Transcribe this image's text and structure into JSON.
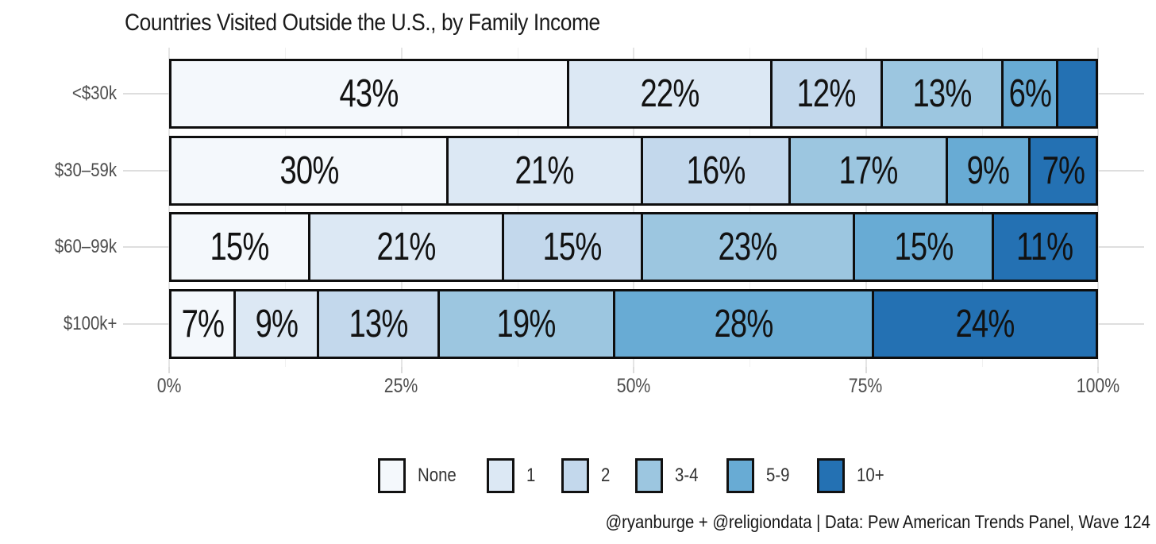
{
  "chart_data": {
    "type": "bar",
    "variant": "horizontal-stacked-100pct",
    "title": "Countries Visited Outside the U.S., by Family Income",
    "categories": [
      "<$30k",
      "$30–59k",
      "$60–99k",
      "$100k+"
    ],
    "legend": [
      "None",
      "1",
      "2",
      "3-4",
      "5-9",
      "10+"
    ],
    "legend_position": "bottom",
    "colors": [
      "#f4f8fc",
      "#dce8f4",
      "#c3d8ec",
      "#9cc6e0",
      "#68abd4",
      "#2471b3"
    ],
    "series": [
      {
        "name": "None",
        "values": [
          43,
          30,
          15,
          7
        ]
      },
      {
        "name": "1",
        "values": [
          22,
          21,
          21,
          9
        ]
      },
      {
        "name": "2",
        "values": [
          12,
          16,
          15,
          13
        ]
      },
      {
        "name": "3-4",
        "values": [
          13,
          17,
          23,
          19
        ]
      },
      {
        "name": "5-9",
        "values": [
          6,
          9,
          15,
          28
        ]
      },
      {
        "name": "10+",
        "values": [
          4,
          7,
          11,
          24
        ]
      }
    ],
    "rows": [
      {
        "category": "<$30k",
        "values": [
          43,
          22,
          12,
          13,
          6,
          4
        ],
        "labels": [
          "43%",
          "22%",
          "12%",
          "13%",
          "6%",
          ""
        ]
      },
      {
        "category": "$30–59k",
        "values": [
          30,
          21,
          16,
          17,
          9,
          7
        ],
        "labels": [
          "30%",
          "21%",
          "16%",
          "17%",
          "9%",
          "7%"
        ]
      },
      {
        "category": "$60–99k",
        "values": [
          15,
          21,
          15,
          23,
          15,
          11
        ],
        "labels": [
          "15%",
          "21%",
          "15%",
          "23%",
          "15%",
          "11%"
        ]
      },
      {
        "category": "$100k+",
        "values": [
          7,
          9,
          13,
          19,
          28,
          24
        ],
        "labels": [
          "7%",
          "9%",
          "13%",
          "19%",
          "28%",
          "24%"
        ]
      }
    ],
    "x_ticks": [
      "0%",
      "25%",
      "50%",
      "75%",
      "100%"
    ],
    "x_tick_values": [
      0,
      25,
      50,
      75,
      100
    ],
    "xlim": [
      0,
      100
    ],
    "grid": "vertical major at 25% steps, minor at 12.5% steps; horizontal at category centers",
    "caption": "@ryanburge + @religiondata | Data: Pew American Trends Panel, Wave 124"
  }
}
